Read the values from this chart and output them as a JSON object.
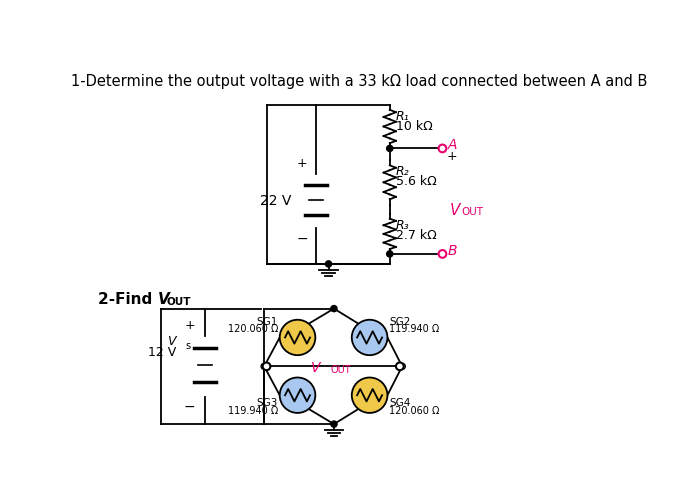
{
  "title": "1-Determine the output voltage with a 33 kΩ load connected between A and B",
  "title_fontsize": 10.5,
  "bg_color": "#ffffff",
  "section2_label": "2-Find V",
  "section2_sub": "OUT",
  "circuit1": {
    "battery_label": "22 V",
    "R1_label": "R₁",
    "R1_val": "10 kΩ",
    "R2_label": "R₂",
    "R2_val": "5.6 kΩ",
    "R3_label": "R₃",
    "R3_val": "2.7 kΩ",
    "Vout_label": "V",
    "Vout_sub": "OUT",
    "nodeA_label": "A",
    "nodeB_label": "B",
    "plus_label": "+"
  },
  "circuit2": {
    "Vs_label": "V",
    "Vs_sub": "s",
    "Vs_val": "12 V",
    "SG1_label": "SG1",
    "SG1_val": "120.060 Ω",
    "SG2_label": "SG2",
    "SG2_val": "119.940 Ω",
    "SG3_label": "SG3",
    "SG3_val": "119.940 Ω",
    "SG4_label": "SG4",
    "SG4_val": "120.060 Ω",
    "Vout_label": "V",
    "Vout_sub": "OUT",
    "sg1_color": "#f0c84a",
    "sg2_color": "#a8c8f0",
    "sg3_color": "#a8c8f0",
    "sg4_color": "#f0c84a"
  },
  "line_color": "#000000",
  "vout_text_color": "#e8006e",
  "node_ab_color": "#e8006e"
}
